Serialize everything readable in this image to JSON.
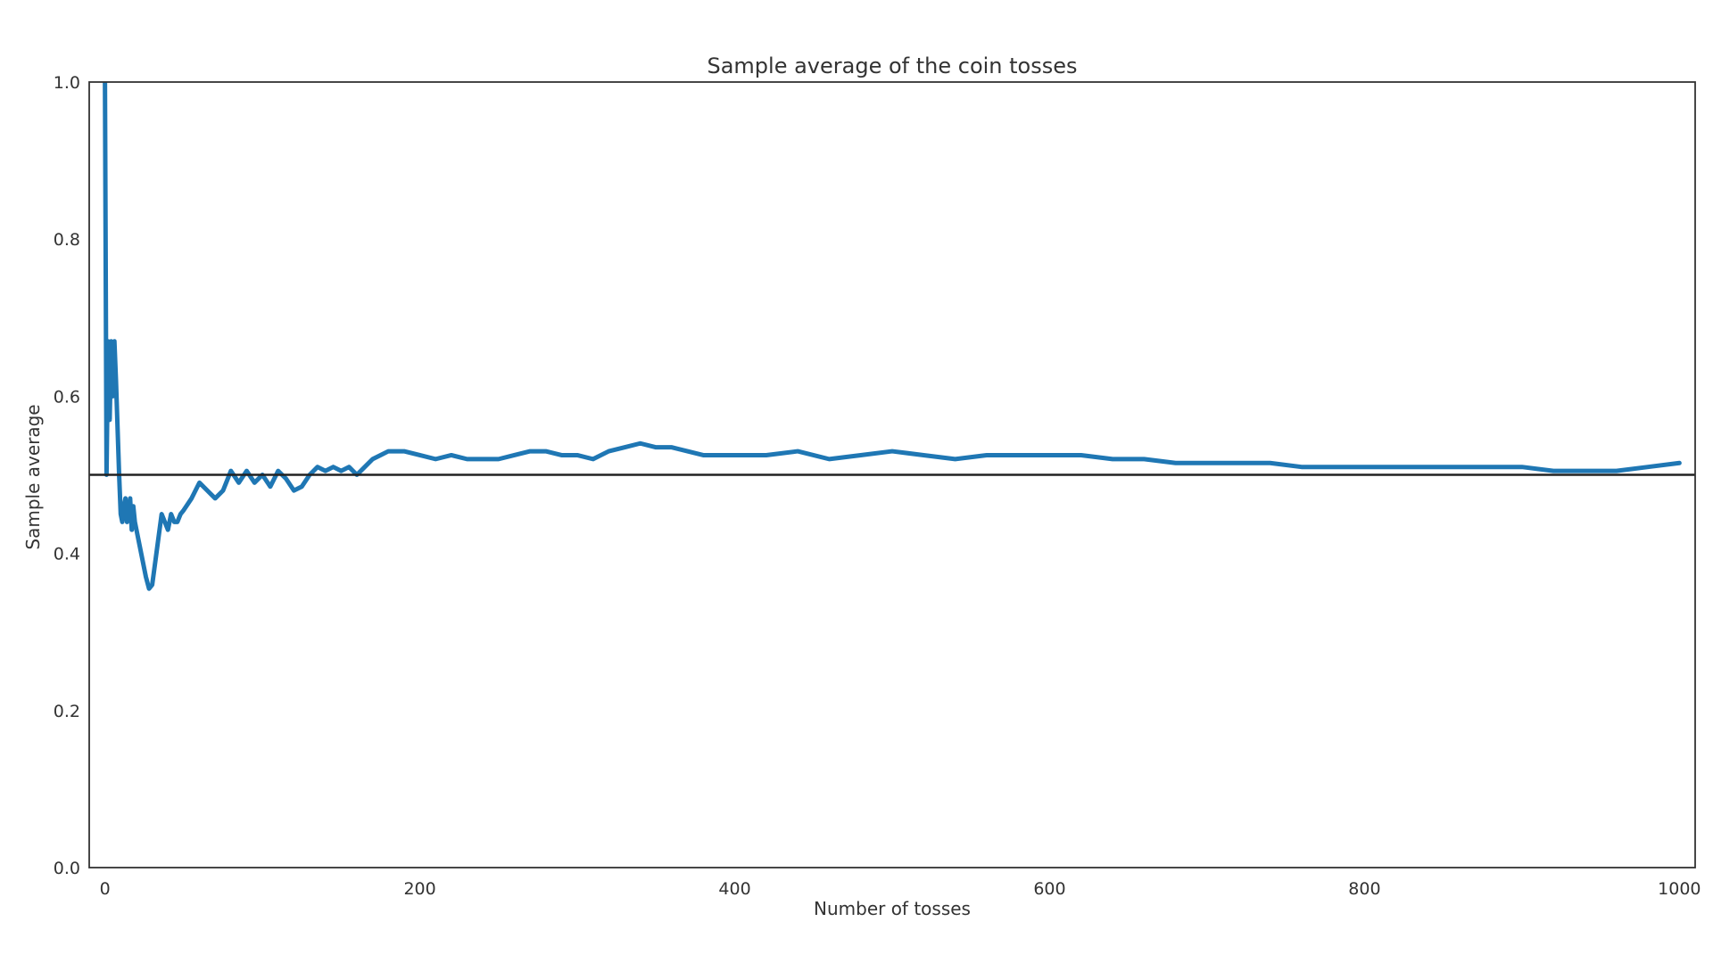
{
  "chart_data": {
    "type": "line",
    "title": "Sample average of the coin tosses",
    "xlabel": "Number of tosses",
    "ylabel": "Sample average",
    "xlim": [
      -10,
      1010
    ],
    "ylim": [
      0.0,
      1.0
    ],
    "xticks": [
      "0",
      "200",
      "400",
      "600",
      "800",
      "1000"
    ],
    "yticks": [
      "0.0",
      "0.2",
      "0.4",
      "0.6",
      "0.8",
      "1.0"
    ],
    "grid": false,
    "legend": "none",
    "series": [
      {
        "color": "#1f77b4",
        "x": [
          0,
          1,
          2,
          3,
          4,
          5,
          6,
          7,
          8,
          9,
          10,
          11,
          12,
          13,
          14,
          15,
          16,
          17,
          18,
          19,
          20,
          22,
          24,
          26,
          28,
          30,
          32,
          34,
          36,
          38,
          40,
          42,
          44,
          46,
          48,
          50,
          55,
          60,
          65,
          70,
          75,
          80,
          85,
          90,
          95,
          100,
          105,
          110,
          115,
          120,
          125,
          130,
          135,
          140,
          145,
          150,
          155,
          160,
          165,
          170,
          175,
          180,
          185,
          190,
          200,
          210,
          220,
          230,
          240,
          250,
          260,
          270,
          280,
          290,
          300,
          310,
          320,
          330,
          340,
          350,
          360,
          370,
          380,
          390,
          400,
          420,
          440,
          460,
          480,
          500,
          520,
          540,
          560,
          580,
          600,
          620,
          640,
          660,
          680,
          700,
          720,
          740,
          760,
          780,
          800,
          820,
          840,
          860,
          880,
          900,
          920,
          940,
          960,
          980,
          1000
        ],
        "y": [
          1.0,
          0.5,
          0.67,
          0.57,
          0.67,
          0.6,
          0.67,
          0.62,
          0.56,
          0.5,
          0.45,
          0.44,
          0.46,
          0.47,
          0.44,
          0.45,
          0.47,
          0.43,
          0.46,
          0.44,
          0.43,
          0.41,
          0.39,
          0.37,
          0.355,
          0.36,
          0.39,
          0.42,
          0.45,
          0.44,
          0.43,
          0.45,
          0.44,
          0.44,
          0.45,
          0.455,
          0.47,
          0.49,
          0.48,
          0.47,
          0.48,
          0.505,
          0.49,
          0.505,
          0.49,
          0.5,
          0.485,
          0.505,
          0.495,
          0.48,
          0.485,
          0.5,
          0.51,
          0.505,
          0.51,
          0.505,
          0.51,
          0.5,
          0.51,
          0.52,
          0.525,
          0.53,
          0.53,
          0.53,
          0.525,
          0.52,
          0.525,
          0.52,
          0.52,
          0.52,
          0.525,
          0.53,
          0.53,
          0.525,
          0.525,
          0.52,
          0.53,
          0.535,
          0.54,
          0.535,
          0.535,
          0.53,
          0.525,
          0.525,
          0.525,
          0.525,
          0.53,
          0.52,
          0.525,
          0.53,
          0.525,
          0.52,
          0.525,
          0.525,
          0.525,
          0.525,
          0.52,
          0.52,
          0.515,
          0.515,
          0.515,
          0.515,
          0.51,
          0.51,
          0.51,
          0.51,
          0.51,
          0.51,
          0.51,
          0.51,
          0.505,
          0.505,
          0.505,
          0.51,
          0.515
        ]
      }
    ],
    "reference_lines": [
      {
        "axis": "y",
        "value": 0.5,
        "color": "#222222"
      }
    ]
  }
}
